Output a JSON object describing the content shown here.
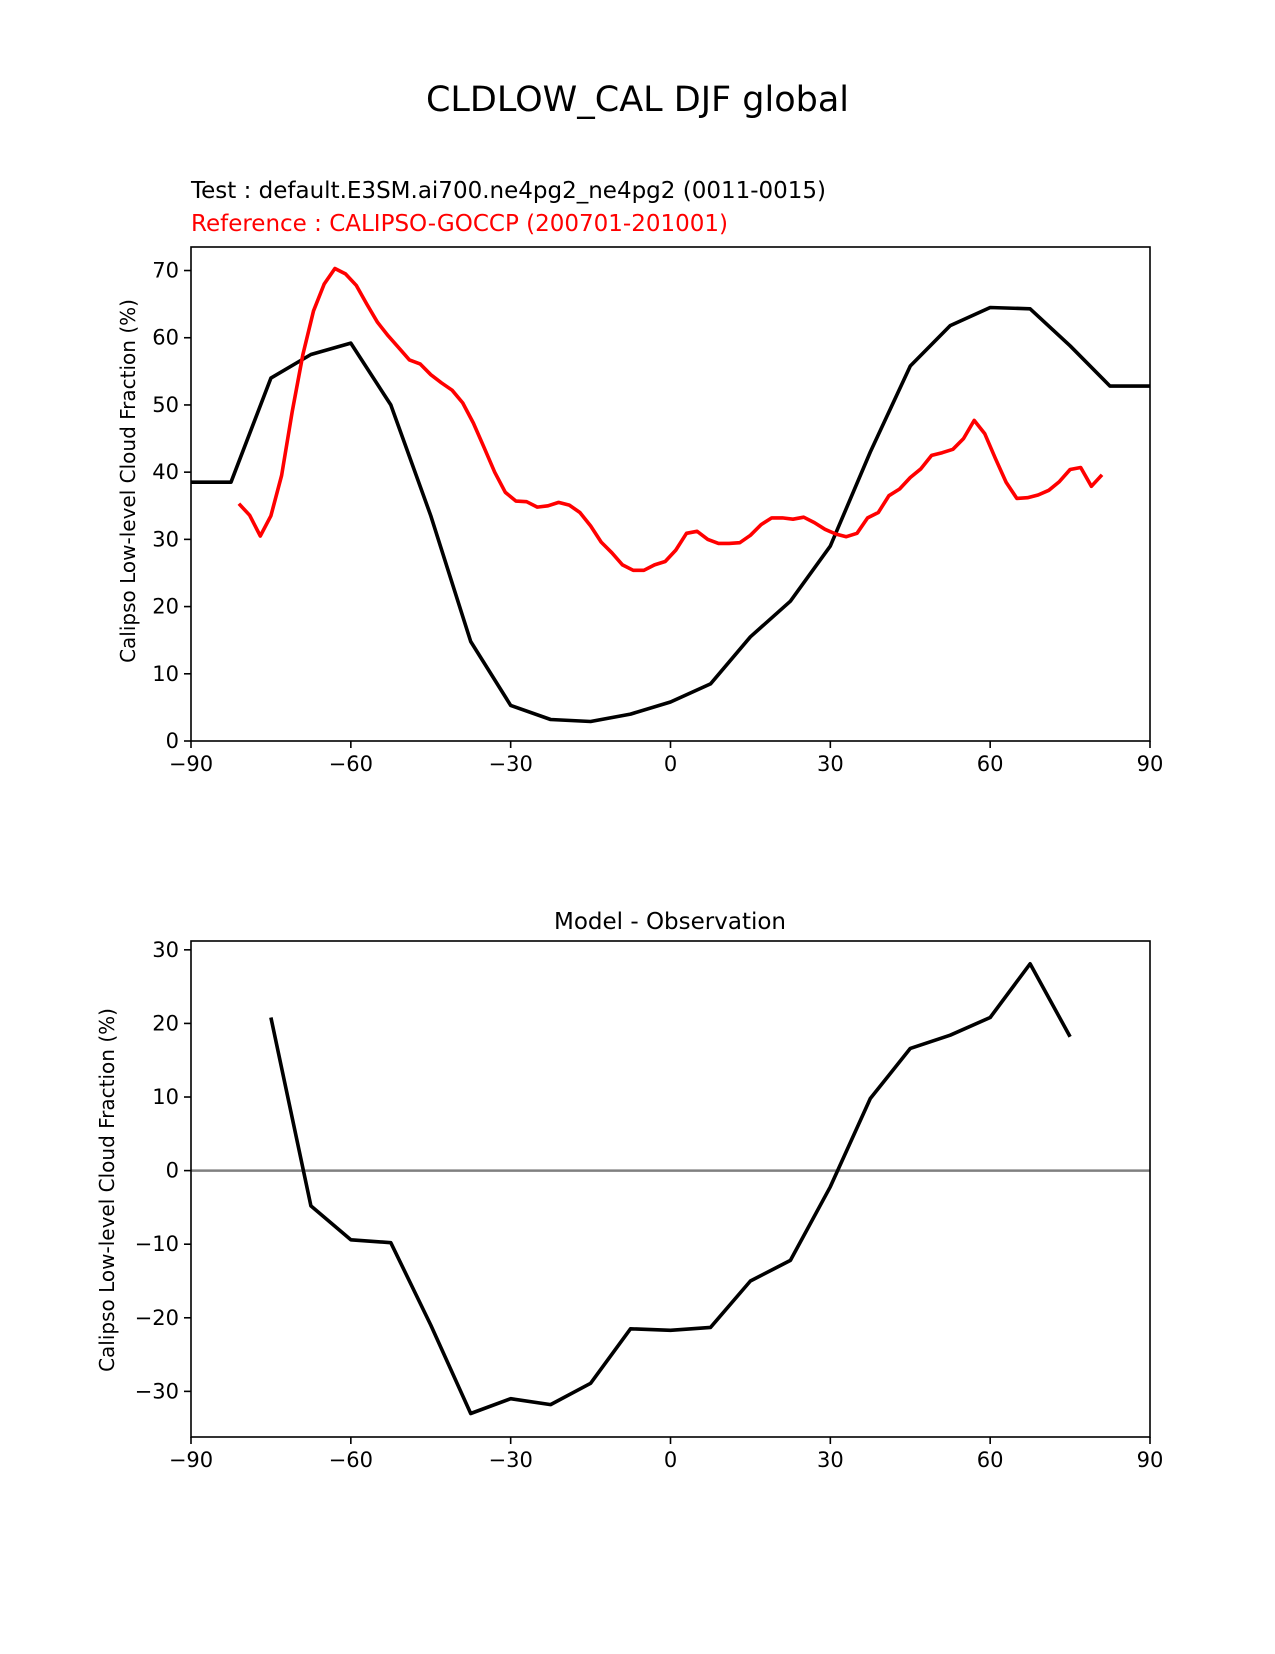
{
  "figure": {
    "suptitle": "CLDLOW_CAL DJF global"
  },
  "colors": {
    "test": "#000000",
    "reference": "#ff0000",
    "zero_line": "#808080"
  },
  "chart_data": [
    {
      "type": "line",
      "id": "top",
      "title": "",
      "legend": [
        {
          "label": "Test : default.E3SM.ai700.ne4pg2_ne4pg2 (0011-0015)",
          "color": "#000000"
        },
        {
          "label": "Reference : CALIPSO-GOCCP (200701-201001)",
          "color": "#ff0000"
        }
      ],
      "xlabel": "",
      "ylabel": "Calipso Low-level Cloud Fraction (%)",
      "xlim": [
        -90,
        90
      ],
      "ylim": [
        0,
        73.5
      ],
      "xticks": [
        -90,
        -60,
        -30,
        0,
        30,
        60,
        90
      ],
      "xtick_labels": [
        "−90",
        "−60",
        "−30",
        "0",
        "30",
        "60",
        "90"
      ],
      "yticks": [
        0,
        10,
        20,
        30,
        40,
        50,
        60,
        70
      ],
      "ytick_labels": [
        "0",
        "10",
        "20",
        "30",
        "40",
        "50",
        "60",
        "70"
      ],
      "series": [
        {
          "name": "Test",
          "color": "#000000",
          "x": [
            -90,
            -82.5,
            -75,
            -67.5,
            -60,
            -52.5,
            -45,
            -37.5,
            -30,
            -22.5,
            -15,
            -7.5,
            0,
            7.5,
            15,
            22.5,
            30,
            37.5,
            45,
            52.5,
            60,
            67.5,
            75,
            82.5,
            90
          ],
          "y": [
            38.5,
            38.5,
            54.0,
            57.5,
            59.2,
            50.0,
            33.5,
            14.8,
            5.3,
            3.2,
            2.9,
            4.0,
            5.8,
            8.5,
            15.5,
            20.8,
            29.0,
            43.0,
            55.8,
            61.8,
            64.5,
            64.3,
            58.8,
            52.8,
            52.8
          ]
        },
        {
          "name": "Reference",
          "color": "#ff0000",
          "x": [
            -81,
            -79,
            -77,
            -75,
            -73,
            -71,
            -69,
            -67,
            -65,
            -63,
            -61,
            -59,
            -57,
            -55,
            -53,
            -51,
            -49,
            -47,
            -45,
            -43,
            -41,
            -39,
            -37,
            -35,
            -33,
            -31,
            -29,
            -27,
            -25,
            -23,
            -21,
            -19,
            -17,
            -15,
            -13,
            -11,
            -9,
            -7,
            -5,
            -3,
            -1,
            1,
            3,
            5,
            7,
            9,
            11,
            13,
            15,
            17,
            19,
            21,
            23,
            25,
            27,
            29,
            31,
            33,
            35,
            37,
            39,
            41,
            43,
            45,
            47,
            49,
            51,
            53,
            55,
            57,
            59,
            61,
            63,
            65,
            67,
            69,
            71,
            73,
            75,
            77,
            79,
            81
          ],
          "y": [
            35.3,
            33.6,
            30.5,
            33.5,
            39.5,
            49.0,
            57.5,
            64.0,
            68.0,
            70.3,
            69.5,
            67.8,
            65.0,
            62.3,
            60.3,
            58.5,
            56.7,
            56.1,
            54.5,
            53.3,
            52.2,
            50.3,
            47.3,
            43.7,
            40.0,
            37.0,
            35.7,
            35.6,
            34.8,
            35.0,
            35.5,
            35.1,
            34.0,
            32.0,
            29.6,
            28.0,
            26.2,
            25.4,
            25.4,
            26.2,
            26.7,
            28.4,
            30.9,
            31.2,
            30.0,
            29.4,
            29.4,
            29.5,
            30.6,
            32.2,
            33.2,
            33.2,
            33.0,
            33.3,
            32.5,
            31.5,
            30.8,
            30.4,
            30.9,
            33.2,
            34.0,
            36.5,
            37.5,
            39.2,
            40.5,
            42.5,
            42.9,
            43.4,
            45.0,
            47.7,
            45.7,
            42.0,
            38.5,
            36.1,
            36.2,
            36.6,
            37.3,
            38.6,
            40.4,
            40.7,
            37.9,
            39.6
          ]
        }
      ]
    },
    {
      "type": "line",
      "id": "bottom",
      "title": "Model - Observation",
      "xlabel": "",
      "ylabel": "Calipso Low-level Cloud Fraction (%)",
      "xlim": [
        -90,
        90
      ],
      "ylim": [
        -36.2,
        31.2
      ],
      "xticks": [
        -90,
        -60,
        -30,
        0,
        30,
        60,
        90
      ],
      "xtick_labels": [
        "−90",
        "−60",
        "−30",
        "0",
        "30",
        "60",
        "90"
      ],
      "yticks": [
        -30,
        -20,
        -10,
        0,
        10,
        20,
        30
      ],
      "ytick_labels": [
        "−30",
        "−20",
        "−10",
        "0",
        "10",
        "20",
        "30"
      ],
      "zero_line": true,
      "series": [
        {
          "name": "Model - Observation",
          "color": "#000000",
          "x": [
            -75,
            -67.5,
            -60,
            -52.5,
            -45,
            -37.5,
            -30,
            -22.5,
            -15,
            -7.5,
            0,
            7.5,
            15,
            22.5,
            30,
            37.5,
            45,
            52.5,
            60,
            67.5,
            75
          ],
          "y": [
            20.8,
            -4.8,
            -9.4,
            -9.8,
            -21.0,
            -33.0,
            -31.0,
            -31.8,
            -28.9,
            -21.5,
            -21.7,
            -21.3,
            -15.0,
            -12.2,
            -2.2,
            9.8,
            16.6,
            18.4,
            20.8,
            28.1,
            18.2
          ]
        }
      ]
    }
  ]
}
